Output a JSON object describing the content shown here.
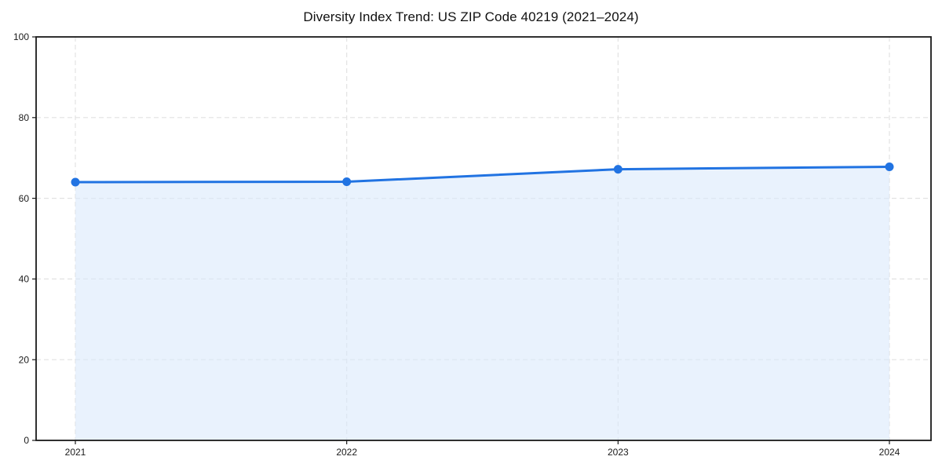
{
  "page": {
    "background": "#ffffff"
  },
  "chart_data": {
    "type": "area",
    "title": "Diversity Index Trend: US ZIP Code 40219 (2021–2024)",
    "x": [
      2021,
      2022,
      2023,
      2024
    ],
    "series": [
      {
        "name": "Diversity Index",
        "values": [
          64.0,
          64.1,
          67.2,
          67.8
        ]
      }
    ],
    "xlabel": "",
    "ylabel": "",
    "ylim": [
      0,
      100
    ],
    "yticks": [
      0,
      20,
      40,
      60,
      80,
      100
    ],
    "grid": true,
    "grid_style": "dashed",
    "legend": "none",
    "marker": "circle",
    "colors": {
      "line": "#2173e2",
      "marker": "#2173e2",
      "fill": "#dbe9fc",
      "grid": "#e2e2e2",
      "axis": "#1a1a1a",
      "text": "#1a1a1a",
      "background": "#ffffff"
    }
  }
}
